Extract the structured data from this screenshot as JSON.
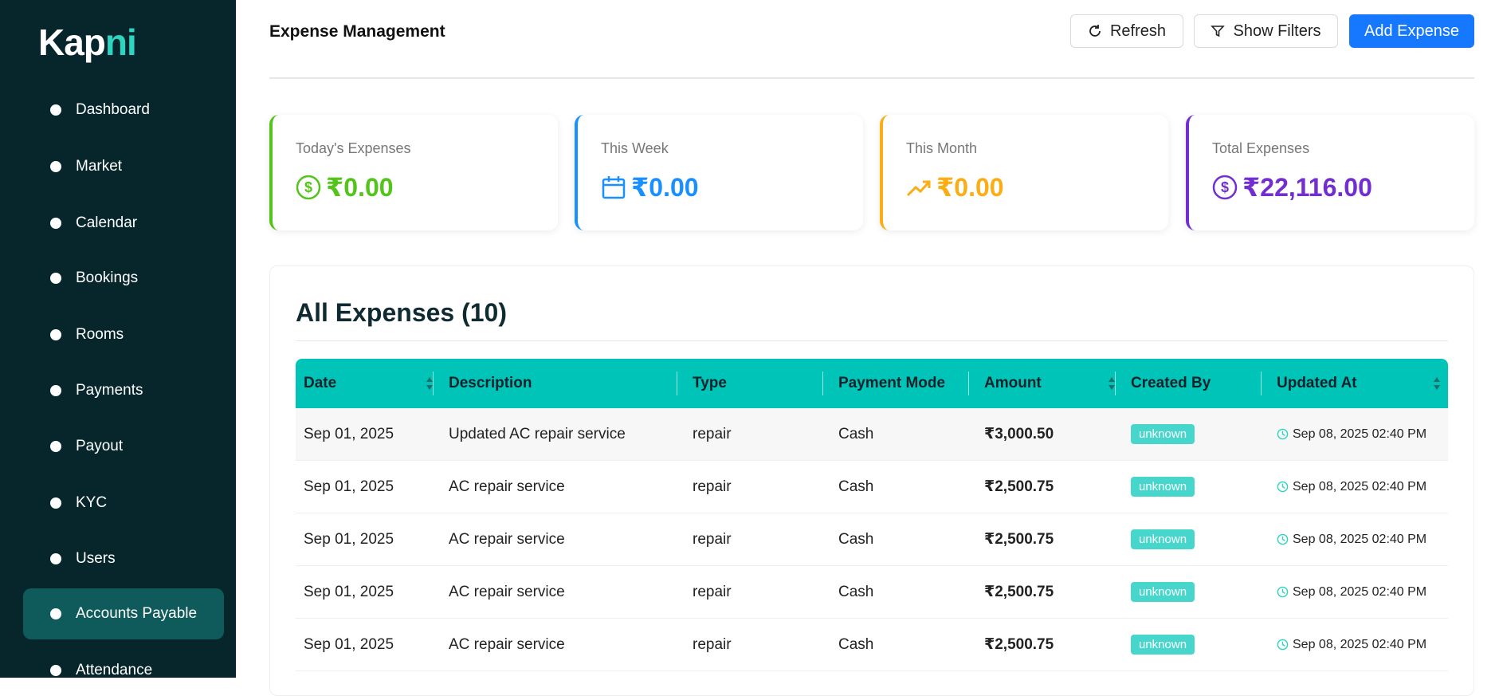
{
  "sidebar": {
    "logo": {
      "part1": "Kap",
      "part2": "ni"
    },
    "items": [
      {
        "label": "Dashboard",
        "active": false
      },
      {
        "label": "Market",
        "active": false
      },
      {
        "label": "Calendar",
        "active": false
      },
      {
        "label": "Bookings",
        "active": false
      },
      {
        "label": "Rooms",
        "active": false
      },
      {
        "label": "Payments",
        "active": false
      },
      {
        "label": "Payout",
        "active": false
      },
      {
        "label": "KYC",
        "active": false
      },
      {
        "label": "Users",
        "active": false
      },
      {
        "label": "Accounts Payable",
        "active": true
      },
      {
        "label": "Attendance",
        "active": false
      }
    ]
  },
  "header": {
    "title": "Expense Management",
    "buttons": [
      "Refresh",
      "Show Filters",
      "Add Expense"
    ]
  },
  "stats": [
    {
      "label": "Today's Expenses",
      "value": "₹0.00",
      "color": "#52c41a"
    },
    {
      "label": "This Week",
      "value": "₹0.00",
      "color": "#1890ff"
    },
    {
      "label": "This Month",
      "value": "₹0.00",
      "color": "#faad14"
    },
    {
      "label": "Total Expenses",
      "value": "₹22,116.00",
      "color": "#722ed1"
    }
  ],
  "table": {
    "title": "All Expenses (10)",
    "columns": [
      "Date",
      "Description",
      "Type",
      "Payment Mode",
      "Amount",
      "Created By",
      "Updated At"
    ],
    "rows": [
      [
        "Sep 01, 2025",
        "Updated AC repair service",
        "repair",
        "Cash",
        "₹3,000.50",
        "unknown",
        "Sep 08, 2025 02:40 PM"
      ],
      [
        "Sep 01, 2025",
        "AC repair service",
        "repair",
        "Cash",
        "₹2,500.75",
        "unknown",
        "Sep 08, 2025 02:40 PM"
      ],
      [
        "Sep 01, 2025",
        "AC repair service",
        "repair",
        "Cash",
        "₹2,500.75",
        "unknown",
        "Sep 08, 2025 02:40 PM"
      ],
      [
        "Sep 01, 2025",
        "AC repair service",
        "repair",
        "Cash",
        "₹2,500.75",
        "unknown",
        "Sep 08, 2025 02:40 PM"
      ],
      [
        "Sep 01, 2025",
        "AC repair service",
        "repair",
        "Cash",
        "₹2,500.75",
        "unknown",
        "Sep 08, 2025 02:40 PM"
      ]
    ]
  }
}
